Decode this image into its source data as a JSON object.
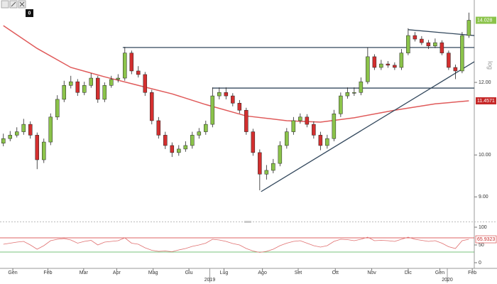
{
  "toolbar": {
    "counter": "0"
  },
  "chart_data": {
    "type": "candlestick",
    "log_scale": true,
    "log_label": "log",
    "xlim": [
      -0.5,
      69.8
    ],
    "ylim": [
      8.49,
      14.63
    ],
    "yticks": [
      {
        "value": 9,
        "label": "9.00"
      },
      {
        "value": 10,
        "label": "10.00"
      },
      {
        "value": 12,
        "label": "12.00"
      }
    ],
    "xticks": [
      {
        "value": 1.4,
        "label": "Gen"
      },
      {
        "value": 6.6,
        "label": "Feb"
      },
      {
        "value": 11.9,
        "label": "Mar"
      },
      {
        "value": 16.8,
        "label": "Apr"
      },
      {
        "value": 22.2,
        "label": "Mag"
      },
      {
        "value": 27.5,
        "label": "Giu"
      },
      {
        "value": 32.7,
        "label": "Lug"
      },
      {
        "value": 38.4,
        "label": "Ago"
      },
      {
        "value": 43.7,
        "label": "Set"
      },
      {
        "value": 49.2,
        "label": "Ott"
      },
      {
        "value": 54.6,
        "label": "Nov"
      },
      {
        "value": 60,
        "label": "Dic"
      },
      {
        "value": 64.7,
        "label": "Gen"
      },
      {
        "value": 69.5,
        "label": "Feb"
      }
    ],
    "year_ticks": [
      {
        "value": 30.6,
        "label": "2019"
      },
      {
        "value": 65.8,
        "label": "2020"
      }
    ],
    "up_color": "#8bc34a",
    "down_color": "#d32f2f",
    "last_price_color": "#8bc34a",
    "open": [
      10.3,
      10.42,
      10.51,
      10.6,
      10.8,
      10.51,
      9.88,
      10.33,
      11.0,
      11.5,
      11.91,
      12.02,
      11.7,
      11.91,
      12.13,
      11.5,
      11.91,
      12.09,
      12.13,
      12.92,
      12.35,
      12.24,
      11.7,
      10.9,
      10.51,
      10.24,
      10.06,
      10.15,
      10.24,
      10.51,
      10.6,
      10.8,
      11.6,
      11.7,
      11.6,
      11.39,
      11.19,
      10.6,
      10.06,
      9.53,
      9.62,
      9.79,
      10.24,
      10.6,
      10.9,
      11.0,
      10.8,
      10.51,
      10.24,
      10.42,
      11.09,
      11.6,
      11.7,
      11.7,
      12.02,
      12.8,
      12.46,
      12.57,
      12.53,
      12.46,
      12.92,
      13.5,
      13.38,
      13.26,
      13.15,
      13.26,
      12.92,
      12.46,
      12.35,
      13.5
    ],
    "high": [
      10.55,
      10.62,
      10.72,
      10.95,
      10.88,
      10.58,
      10.42,
      11.1,
      11.62,
      12.05,
      12.2,
      12.1,
      12.02,
      12.28,
      12.2,
      12.0,
      12.2,
      12.25,
      13.12,
      13.0,
      12.5,
      12.32,
      11.78,
      11.0,
      10.6,
      10.32,
      10.25,
      10.35,
      10.6,
      10.7,
      10.9,
      11.85,
      11.85,
      11.85,
      11.68,
      11.48,
      11.26,
      10.68,
      10.14,
      9.75,
      9.9,
      10.35,
      10.7,
      11.0,
      11.1,
      11.08,
      10.88,
      10.6,
      10.52,
      11.2,
      11.7,
      11.85,
      11.85,
      12.15,
      13.1,
      12.88,
      12.7,
      12.66,
      12.62,
      13.05,
      13.75,
      13.62,
      13.48,
      13.35,
      13.4,
      13.34,
      13.0,
      12.55,
      13.62,
      14.3
    ],
    "low": [
      10.22,
      10.35,
      10.45,
      10.52,
      10.42,
      9.65,
      9.8,
      10.25,
      10.92,
      11.42,
      11.82,
      11.6,
      11.62,
      11.84,
      11.4,
      11.42,
      11.84,
      12.0,
      12.05,
      12.25,
      12.15,
      11.6,
      10.8,
      10.42,
      10.15,
      9.95,
      9.98,
      10.08,
      10.16,
      10.42,
      10.52,
      10.72,
      11.5,
      11.5,
      11.3,
      11.1,
      10.52,
      9.98,
      9.15,
      9.4,
      9.55,
      9.72,
      10.16,
      10.52,
      10.82,
      10.72,
      10.42,
      10.12,
      10.16,
      10.35,
      11.0,
      11.52,
      11.6,
      11.62,
      11.95,
      12.38,
      12.38,
      12.45,
      12.38,
      12.38,
      12.85,
      13.3,
      13.18,
      13.05,
      13.08,
      12.85,
      12.38,
      12.1,
      12.28,
      13.42
    ],
    "close": [
      10.42,
      10.51,
      10.6,
      10.8,
      10.51,
      9.88,
      10.33,
      11.0,
      11.5,
      11.91,
      12.02,
      11.7,
      11.91,
      12.13,
      11.5,
      11.91,
      12.09,
      12.13,
      12.92,
      12.35,
      12.24,
      11.7,
      10.9,
      10.51,
      10.24,
      10.06,
      10.15,
      10.24,
      10.51,
      10.6,
      10.8,
      11.6,
      11.7,
      11.6,
      11.39,
      11.19,
      10.6,
      10.06,
      9.53,
      9.62,
      9.79,
      10.24,
      10.6,
      10.9,
      11.0,
      10.8,
      10.51,
      10.24,
      10.42,
      11.09,
      11.6,
      11.7,
      11.7,
      12.02,
      12.8,
      12.46,
      12.57,
      12.53,
      12.46,
      12.92,
      13.5,
      13.38,
      13.26,
      13.15,
      13.26,
      12.92,
      12.46,
      12.35,
      13.5,
      14.028
    ],
    "moving_average": {
      "color": "#e05a5a",
      "x": [
        0,
        5,
        10,
        15,
        20,
        25,
        30,
        36,
        42,
        47,
        52,
        58,
        64,
        69
      ],
      "values": [
        13.84,
        13.07,
        12.46,
        12.17,
        11.91,
        11.66,
        11.35,
        11.03,
        10.9,
        10.86,
        10.98,
        11.19,
        11.37,
        11.4571
      ]
    },
    "trendline_color": "#34495e",
    "trendlines": [
      {
        "x": [
          17.7,
          69.8
        ],
        "values": [
          13.1,
          13.1
        ]
      },
      {
        "x": [
          31,
          69.8
        ],
        "values": [
          11.83,
          11.83
        ]
      },
      {
        "x": [
          38.2,
          69.8
        ],
        "values": [
          9.12,
          12.64
        ]
      },
      {
        "x": [
          60,
          69.8
        ],
        "values": [
          13.7,
          13.5
        ]
      }
    ],
    "rsi": {
      "color": "#e07070",
      "ylim": [
        0,
        100
      ],
      "yticks": [
        0,
        50,
        100
      ],
      "levels": [
        {
          "value": 70,
          "color": "#d32f2f"
        },
        {
          "value": 30,
          "color": "#4caf50"
        }
      ],
      "values": [
        52,
        55,
        58,
        60,
        50,
        38,
        48,
        62,
        66,
        68,
        64,
        55,
        60,
        63,
        50,
        58,
        60,
        62,
        70,
        55,
        52,
        42,
        35,
        32,
        33,
        31,
        36,
        40,
        46,
        50,
        55,
        66,
        64,
        60,
        54,
        50,
        40,
        33,
        29,
        32,
        38,
        48,
        55,
        60,
        62,
        55,
        48,
        44,
        48,
        60,
        66,
        65,
        62,
        66,
        72,
        62,
        63,
        62,
        60,
        66,
        72,
        66,
        63,
        60,
        62,
        55,
        45,
        40,
        62,
        65.9323
      ]
    }
  }
}
